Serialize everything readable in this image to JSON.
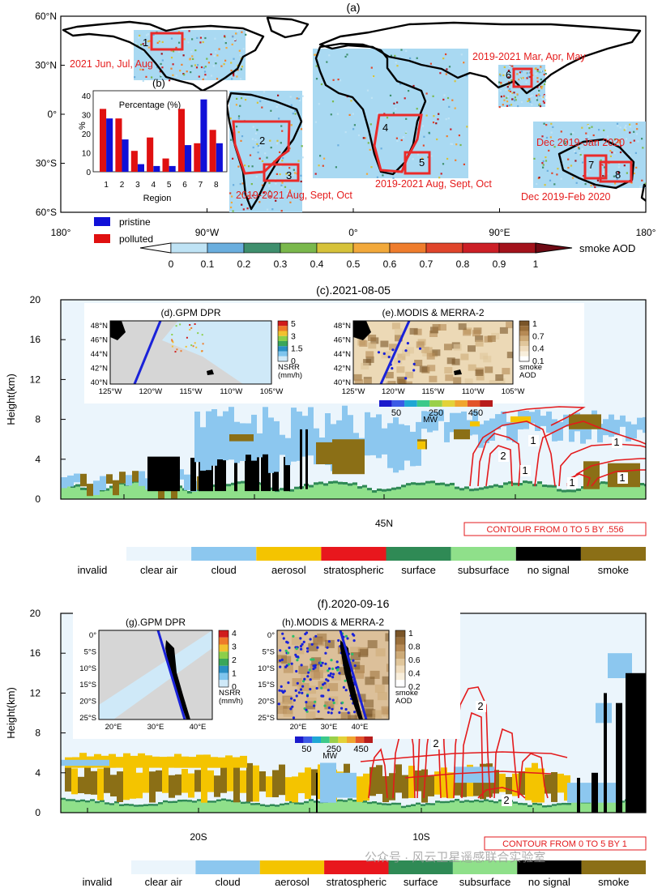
{
  "colors": {
    "smoke": "#8b6f16",
    "aerosol": "#f4c400",
    "cloud": "#8cc7ef",
    "clear_air": "#ebf5fc",
    "stratospheric": "#e8171d",
    "surface": "#2f8a55",
    "subsurface": "#8fe08a",
    "no_signal": "#000000",
    "invalid": "#ffffff",
    "contour": "#e31a1c",
    "region_box": "#ea2a2a",
    "pristine": "#1010d8",
    "polluted": "#e01010",
    "ocean": "#ffffff",
    "satellite_track": "#1a22d9"
  },
  "panel_a": {
    "label": "(a)",
    "lat_ticks": [
      "60°N",
      "30°N",
      "0°",
      "30°S",
      "60°S"
    ],
    "lon_ticks": [
      "180°",
      "90°W",
      "0°",
      "90°E",
      "180°"
    ],
    "regions": [
      "1",
      "2",
      "3",
      "4",
      "5",
      "6",
      "7",
      "8"
    ],
    "annotations": [
      "2021 Jun, Jul, Aug",
      "2019-2021 Aug, Sept, Oct",
      "2019-2021 Aug, Sept, Oct",
      "2019-2021 Mar, Apr, May",
      "Dec 2019-Jan 2020",
      "Dec 2019-Feb 2020"
    ],
    "colorbar_label": "smoke AOD",
    "colorbar_ticks": [
      "0",
      "0.1",
      "0.2",
      "0.3",
      "0.4",
      "0.5",
      "0.6",
      "0.7",
      "0.8",
      "0.9",
      "1"
    ],
    "colorbar_colors": [
      "#bfe3f5",
      "#6aaede",
      "#3f8f6d",
      "#7ab84c",
      "#d6c23a",
      "#f2a93b",
      "#ef7d2d",
      "#e0452b",
      "#cc1f26",
      "#a3121b"
    ]
  },
  "panel_b": {
    "label": "(b)",
    "title": "Percentage (%)",
    "xlabel": "Region",
    "ylabel": "%",
    "legend": [
      "pristine",
      "polluted"
    ]
  },
  "panel_c": {
    "title": "(c).2021-08-05",
    "ylabel": "Height(km)",
    "y_ticks": [
      "0",
      "4",
      "8",
      "12",
      "16",
      "20"
    ],
    "x_ticks": [
      "45N"
    ],
    "contour_note": "CONTOUR FROM 0 TO 5 BY .556",
    "contour_labels": [
      "1",
      "2",
      "1",
      "1",
      "1",
      "1",
      "2"
    ],
    "inset_d": {
      "title": "(d).GPM DPR",
      "lat_ticks": [
        "48°N",
        "46°N",
        "44°N",
        "42°N",
        "40°N"
      ],
      "lon_ticks": [
        "125°W",
        "120°W",
        "115°W",
        "110°W",
        "105°W"
      ],
      "cb_ticks": [
        "5",
        "3",
        "1.5",
        "0"
      ],
      "cb_label": "NSRR",
      "cb_unit": "(mm/h)"
    },
    "inset_e": {
      "title": "(e).MODIS & MERRA-2",
      "lat_ticks": [
        "48°N",
        "46°N",
        "44°N",
        "42°N",
        "40°N"
      ],
      "lon_ticks": [
        "125°W",
        "120°W",
        "115°W",
        "110°W",
        "105°W"
      ],
      "cb_ticks": [
        "1",
        "0.7",
        "0.4",
        "0.1"
      ],
      "cb_label": "smoke",
      "cb_unit": "AOD",
      "fire_ticks": [
        "50",
        "250",
        "450"
      ],
      "fire_unit": "MW"
    }
  },
  "panel_f": {
    "title": "(f).2020-09-16",
    "ylabel": "Height(km)",
    "y_ticks": [
      "0",
      "4",
      "8",
      "12",
      "16",
      "20"
    ],
    "x_ticks": [
      "20S",
      "10S"
    ],
    "contour_note": "CONTOUR FROM 0 TO 5 BY 1",
    "contour_labels": [
      "2",
      "2",
      "2"
    ],
    "inset_g": {
      "title": "(g).GPM DPR",
      "lat_ticks": [
        "0°",
        "5°S",
        "10°S",
        "15°S",
        "20°S",
        "25°S"
      ],
      "lon_ticks": [
        "20°E",
        "30°E",
        "40°E"
      ],
      "cb_ticks": [
        "4",
        "3",
        "2",
        "1",
        "0"
      ],
      "cb_label": "NSRR",
      "cb_unit": "(mm/h)"
    },
    "inset_h": {
      "title": "(h).MODIS & MERRA-2",
      "lat_ticks": [
        "0°",
        "5°S",
        "10°S",
        "15°S",
        "20°S",
        "25°S"
      ],
      "lon_ticks": [
        "20°E",
        "30°E",
        "40°E"
      ],
      "cb_ticks": [
        "1",
        "0.8",
        "0.6",
        "0.4",
        "0.2"
      ],
      "cb_label": "smoke",
      "cb_unit": "AOD",
      "fire_ticks": [
        "50",
        "250",
        "450"
      ],
      "fire_unit": "MW"
    }
  },
  "legend": {
    "labels": [
      "invalid",
      "clear air",
      "cloud",
      "aerosol",
      "stratospheric",
      "surface",
      "subsurface",
      "no signal",
      "smoke"
    ]
  },
  "watermark": "公众号 · 风云卫星遥感联合实验室",
  "chart_data": [
    {
      "type": "bar",
      "title": "Percentage (%)",
      "xlabel": "Region",
      "ylabel": "%",
      "ylim": [
        0,
        40
      ],
      "categories": [
        "1",
        "2",
        "3",
        "4",
        "5",
        "6",
        "7",
        "8"
      ],
      "series": [
        {
          "name": "pristine",
          "values": [
            28,
            17,
            4,
            3,
            3,
            14,
            38,
            15
          ]
        },
        {
          "name": "polluted",
          "values": [
            33,
            28,
            11,
            18,
            7,
            33,
            15,
            22
          ]
        }
      ]
    },
    {
      "type": "heatmap",
      "title": "(c).2021-08-05",
      "ylabel": "Height(km)",
      "ylim": [
        0,
        20
      ],
      "x_ticks": [
        "45N"
      ],
      "categories": [
        "invalid",
        "clear air",
        "cloud",
        "aerosol",
        "stratospheric",
        "surface",
        "subsurface",
        "no signal",
        "smoke"
      ],
      "contour": "CONTOUR FROM 0 TO 5 BY .556"
    },
    {
      "type": "heatmap",
      "title": "(f).2020-09-16",
      "ylabel": "Height(km)",
      "ylim": [
        0,
        20
      ],
      "x_ticks": [
        "20S",
        "10S"
      ],
      "categories": [
        "invalid",
        "clear air",
        "cloud",
        "aerosol",
        "stratospheric",
        "surface",
        "subsurface",
        "no signal",
        "smoke"
      ],
      "contour": "CONTOUR FROM 0 TO 5 BY 1"
    }
  ]
}
